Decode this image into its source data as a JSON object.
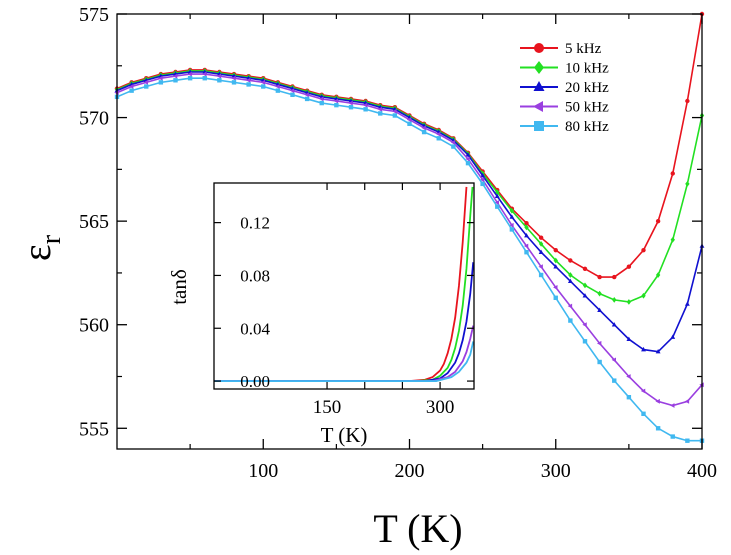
{
  "chart_data": {
    "type": "line",
    "title": "",
    "xlabel": "T (K)",
    "ylabel_main": "ε",
    "ylabel_sub": "r",
    "xlim": [
      0,
      400
    ],
    "ylim": [
      554,
      575
    ],
    "xticks": [
      100,
      200,
      300,
      400
    ],
    "yticks": [
      555,
      560,
      565,
      570,
      575
    ],
    "legend_position": "top-right",
    "series": [
      {
        "name": "5 kHz",
        "color": "#e8141e",
        "marker": "circle",
        "x": [
          0,
          10,
          20,
          30,
          40,
          50,
          60,
          70,
          80,
          90,
          100,
          110,
          120,
          130,
          140,
          150,
          160,
          170,
          180,
          190,
          200,
          210,
          220,
          230,
          240,
          250,
          260,
          270,
          280,
          290,
          300,
          310,
          320,
          330,
          340,
          350,
          360,
          370,
          380,
          390,
          400
        ],
        "y": [
          571.4,
          571.7,
          571.9,
          572.1,
          572.2,
          572.3,
          572.3,
          572.2,
          572.1,
          572.0,
          571.9,
          571.7,
          571.5,
          571.3,
          571.1,
          571.0,
          570.9,
          570.8,
          570.6,
          570.5,
          570.1,
          569.7,
          569.4,
          569.0,
          568.3,
          567.4,
          566.5,
          565.6,
          564.9,
          564.2,
          563.6,
          563.1,
          562.7,
          562.3,
          562.3,
          562.8,
          563.6,
          565.0,
          567.3,
          570.8,
          575.0
        ]
      },
      {
        "name": "10 kHz",
        "color": "#22e022",
        "marker": "diamond",
        "x": [
          0,
          10,
          20,
          30,
          40,
          50,
          60,
          70,
          80,
          90,
          100,
          110,
          120,
          130,
          140,
          150,
          160,
          170,
          180,
          190,
          200,
          210,
          220,
          230,
          240,
          250,
          260,
          270,
          280,
          290,
          300,
          310,
          320,
          330,
          340,
          350,
          360,
          370,
          380,
          390,
          400
        ],
        "y": [
          571.35,
          571.65,
          571.85,
          572.05,
          572.15,
          572.25,
          572.25,
          572.15,
          572.05,
          571.95,
          571.85,
          571.65,
          571.45,
          571.25,
          571.05,
          570.95,
          570.85,
          570.75,
          570.55,
          570.45,
          570.05,
          569.65,
          569.35,
          568.95,
          568.25,
          567.3,
          566.4,
          565.5,
          564.7,
          563.9,
          563.1,
          562.4,
          561.9,
          561.5,
          561.2,
          561.1,
          561.4,
          562.4,
          564.1,
          566.8,
          570.1
        ]
      },
      {
        "name": "20 kHz",
        "color": "#1010d0",
        "marker": "triangle",
        "x": [
          0,
          10,
          20,
          30,
          40,
          50,
          60,
          70,
          80,
          90,
          100,
          110,
          120,
          130,
          140,
          150,
          160,
          170,
          180,
          190,
          200,
          210,
          220,
          230,
          240,
          250,
          260,
          270,
          280,
          290,
          300,
          310,
          320,
          330,
          340,
          350,
          360,
          370,
          380,
          390,
          400
        ],
        "y": [
          571.3,
          571.6,
          571.8,
          572.0,
          572.1,
          572.2,
          572.2,
          572.1,
          572.0,
          571.9,
          571.8,
          571.6,
          571.4,
          571.2,
          571.0,
          570.9,
          570.8,
          570.7,
          570.5,
          570.4,
          570.0,
          569.6,
          569.3,
          568.9,
          568.2,
          567.2,
          566.2,
          565.2,
          564.3,
          563.5,
          562.8,
          562.1,
          561.4,
          560.7,
          560.0,
          559.3,
          558.8,
          558.7,
          559.4,
          561.0,
          563.8
        ]
      },
      {
        "name": "50 kHz",
        "color": "#9a3fe0",
        "marker": "triangle-left",
        "x": [
          0,
          10,
          20,
          30,
          40,
          50,
          60,
          70,
          80,
          90,
          100,
          110,
          120,
          130,
          140,
          150,
          160,
          170,
          180,
          190,
          200,
          210,
          220,
          230,
          240,
          250,
          260,
          270,
          280,
          290,
          300,
          310,
          320,
          330,
          340,
          350,
          360,
          370,
          380,
          390,
          400
        ],
        "y": [
          571.2,
          571.5,
          571.7,
          571.9,
          572.0,
          572.1,
          572.1,
          572.0,
          571.9,
          571.8,
          571.7,
          571.5,
          571.3,
          571.1,
          570.9,
          570.8,
          570.7,
          570.6,
          570.4,
          570.3,
          569.9,
          569.5,
          569.2,
          568.8,
          568.0,
          567.0,
          565.9,
          564.8,
          563.8,
          562.8,
          561.8,
          560.9,
          560.0,
          559.1,
          558.3,
          557.5,
          556.8,
          556.3,
          556.1,
          556.3,
          557.1
        ]
      },
      {
        "name": "80 kHz",
        "color": "#40b8f0",
        "marker": "square",
        "x": [
          0,
          10,
          20,
          30,
          40,
          50,
          60,
          70,
          80,
          90,
          100,
          110,
          120,
          130,
          140,
          150,
          160,
          170,
          180,
          190,
          200,
          210,
          220,
          230,
          240,
          250,
          260,
          270,
          280,
          290,
          300,
          310,
          320,
          330,
          340,
          350,
          360,
          370,
          380,
          390,
          400
        ],
        "y": [
          571.0,
          571.3,
          571.5,
          571.7,
          571.8,
          571.9,
          571.9,
          571.8,
          571.7,
          571.6,
          571.5,
          571.3,
          571.1,
          570.9,
          570.7,
          570.6,
          570.5,
          570.4,
          570.2,
          570.1,
          569.7,
          569.3,
          569.0,
          568.6,
          567.8,
          566.8,
          565.7,
          564.6,
          563.5,
          562.4,
          561.3,
          560.2,
          559.2,
          558.2,
          557.3,
          556.5,
          555.7,
          555.0,
          554.6,
          554.4,
          554.4
        ]
      }
    ],
    "inset": {
      "type": "line",
      "xlabel": "T (K)",
      "ylabel": "tanδ",
      "xlim": [
        0,
        345
      ],
      "ylim": [
        -0.006,
        0.15
      ],
      "xticks": [
        150,
        200,
        250,
        300
      ],
      "xtick_labels": [
        "150",
        "",
        "",
        "300"
      ],
      "yticks": [
        0.0,
        0.04,
        0.08,
        0.12
      ],
      "ytick_labels": [
        "0.00",
        "0.04",
        "0.08",
        "0.12"
      ],
      "series": [
        {
          "name": "5 kHz",
          "color": "#e8141e",
          "x": [
            0,
            260,
            280,
            290,
            300,
            305,
            310,
            315,
            320,
            325,
            330,
            335
          ],
          "y": [
            0.0,
            0.0,
            0.001,
            0.003,
            0.008,
            0.013,
            0.021,
            0.032,
            0.048,
            0.072,
            0.105,
            0.147
          ]
        },
        {
          "name": "10 kHz",
          "color": "#22e022",
          "x": [
            0,
            270,
            290,
            300,
            310,
            315,
            320,
            325,
            330,
            335,
            340,
            343
          ],
          "y": [
            0.0,
            0.0,
            0.001,
            0.004,
            0.01,
            0.016,
            0.025,
            0.038,
            0.057,
            0.085,
            0.125,
            0.147
          ]
        },
        {
          "name": "20 kHz",
          "color": "#1010d0",
          "x": [
            0,
            280,
            300,
            310,
            320,
            325,
            330,
            335,
            340,
            344
          ],
          "y": [
            0.0,
            0.0,
            0.002,
            0.006,
            0.014,
            0.021,
            0.031,
            0.045,
            0.066,
            0.09
          ]
        },
        {
          "name": "50 kHz",
          "color": "#9a3fe0",
          "x": [
            0,
            290,
            310,
            320,
            330,
            335,
            340,
            344
          ],
          "y": [
            0.0,
            0.0,
            0.003,
            0.007,
            0.015,
            0.022,
            0.032,
            0.042
          ]
        },
        {
          "name": "80 kHz",
          "color": "#40b8f0",
          "x": [
            0,
            295,
            315,
            325,
            335,
            340,
            344
          ],
          "y": [
            0.0,
            0.0,
            0.003,
            0.007,
            0.014,
            0.02,
            0.03
          ]
        }
      ]
    }
  }
}
